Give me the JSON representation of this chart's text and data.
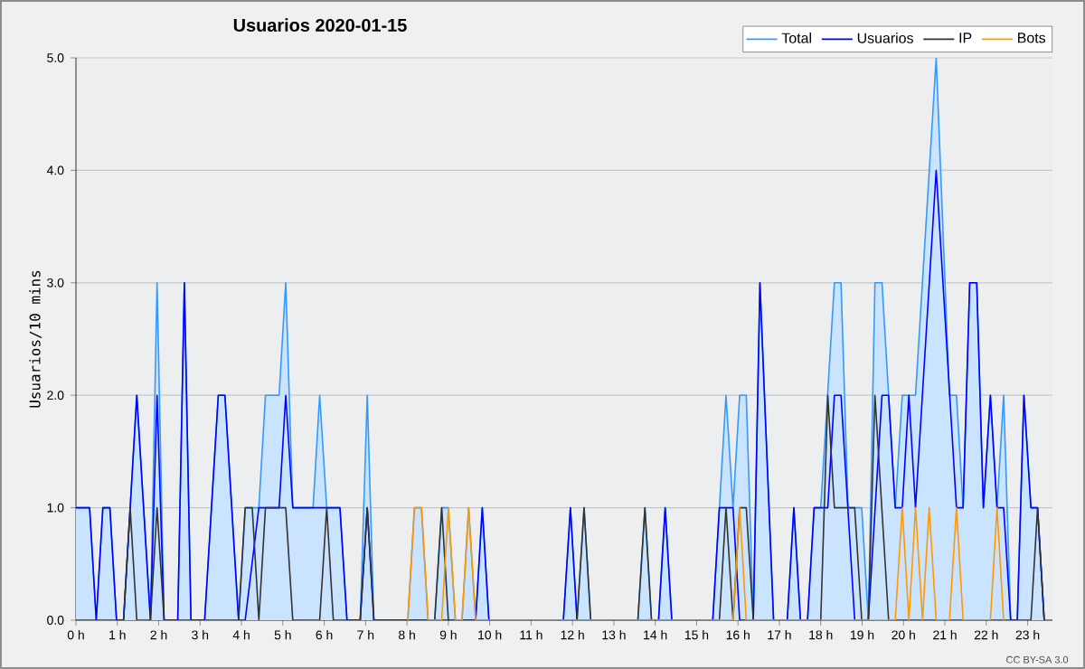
{
  "chart_data": {
    "type": "line",
    "title": "Usuarios  2020-01-15",
    "ylabel": "Usuarios/10 mins",
    "xlim": [
      0,
      23.6
    ],
    "ylim": [
      0,
      5
    ],
    "xticks": [
      {
        "value": 0,
        "label": "0 h"
      },
      {
        "value": 1,
        "label": "1 h"
      },
      {
        "value": 2,
        "label": "2 h"
      },
      {
        "value": 3,
        "label": "3 h"
      },
      {
        "value": 4,
        "label": "4 h"
      },
      {
        "value": 5,
        "label": "5 h"
      },
      {
        "value": 6,
        "label": "6 h"
      },
      {
        "value": 7,
        "label": "7 h"
      },
      {
        "value": 8,
        "label": "8 h"
      },
      {
        "value": 9,
        "label": "9 h"
      },
      {
        "value": 10,
        "label": "10 h"
      },
      {
        "value": 11,
        "label": "11 h"
      },
      {
        "value": 12,
        "label": "12 h"
      },
      {
        "value": 13,
        "label": "13 h"
      },
      {
        "value": 14,
        "label": "14 h"
      },
      {
        "value": 15,
        "label": "15 h"
      },
      {
        "value": 16,
        "label": "16 h"
      },
      {
        "value": 17,
        "label": "17 h"
      },
      {
        "value": 18,
        "label": "18 h"
      },
      {
        "value": 19,
        "label": "19 h"
      },
      {
        "value": 20,
        "label": "20 h"
      },
      {
        "value": 21,
        "label": "21 h"
      },
      {
        "value": 22,
        "label": "22 h"
      },
      {
        "value": 23,
        "label": "23 h"
      }
    ],
    "yticks": [
      {
        "value": 0,
        "label": "0.0"
      },
      {
        "value": 1,
        "label": "1.0"
      },
      {
        "value": 2,
        "label": "2.0"
      },
      {
        "value": 3,
        "label": "3.0"
      },
      {
        "value": 4,
        "label": "4.0"
      },
      {
        "value": 5,
        "label": "5.0"
      }
    ],
    "grid": "y",
    "legend": "top right",
    "annotations": [
      "CC BY-SA 3.0"
    ],
    "series": [
      {
        "name": "Total",
        "type": "area",
        "color": "#3399ff",
        "x": [
          0,
          0.33,
          0.49,
          0.65,
          0.82,
          0.98,
          1.15,
          1.47,
          1.8,
          1.96,
          2.13,
          2.46,
          2.62,
          2.78,
          3.11,
          3.44,
          3.6,
          3.93,
          4.09,
          4.42,
          4.58,
          4.91,
          5.07,
          5.24,
          5.73,
          5.89,
          6.06,
          6.38,
          6.55,
          6.87,
          7.04,
          7.2,
          8.02,
          8.18,
          8.35,
          8.51,
          8.67,
          8.84,
          9.0,
          9.17,
          9.33,
          9.49,
          9.66,
          9.82,
          9.98,
          11.78,
          11.95,
          12.11,
          12.28,
          12.44,
          13.58,
          13.75,
          13.91,
          14.08,
          14.24,
          14.4,
          15.39,
          15.55,
          15.71,
          15.88,
          16.04,
          16.2,
          16.37,
          16.53,
          16.86,
          17.19,
          17.35,
          17.51,
          17.68,
          17.84,
          18.0,
          18.33,
          18.49,
          18.66,
          18.99,
          19.15,
          19.31,
          19.48,
          19.8,
          19.97,
          20.29,
          20.79,
          21.11,
          21.28,
          21.44,
          21.6,
          21.77,
          21.93,
          22.1,
          22.26,
          22.42,
          22.59,
          22.75,
          22.91,
          23.08,
          23.24,
          23.4
        ],
        "values": [
          1,
          1,
          0,
          1,
          1,
          0,
          0,
          2,
          0,
          3,
          0,
          0,
          3,
          0,
          0,
          2,
          2,
          0,
          1,
          1,
          2,
          2,
          3,
          1,
          1,
          2,
          1,
          1,
          0,
          0,
          2,
          0,
          0,
          1,
          1,
          0,
          0,
          1,
          1,
          0,
          0,
          1,
          0,
          1,
          0,
          0,
          1,
          0,
          1,
          0,
          0,
          1,
          0,
          0,
          1,
          0,
          0,
          1,
          2,
          1,
          2,
          2,
          0,
          3,
          0,
          0,
          1,
          0,
          0,
          1,
          1,
          3,
          3,
          1,
          1,
          0,
          3,
          3,
          1,
          2,
          2,
          5,
          2,
          2,
          1,
          3,
          3,
          1,
          2,
          1,
          2,
          0,
          0,
          2,
          1,
          1,
          0
        ]
      },
      {
        "name": "Usuarios",
        "color": "#0000ff",
        "x": [
          0,
          0.33,
          0.49,
          0.65,
          0.82,
          0.98,
          1.15,
          1.47,
          1.8,
          1.96,
          2.13,
          2.46,
          2.62,
          2.78,
          3.11,
          3.44,
          3.6,
          3.93,
          4.09,
          4.42,
          4.91,
          5.07,
          5.24,
          6.38,
          6.55,
          6.87,
          7.04,
          7.2,
          9.66,
          9.82,
          9.98,
          11.78,
          11.95,
          12.11,
          14.08,
          14.24,
          14.4,
          15.39,
          15.55,
          15.88,
          16.04,
          16.37,
          16.53,
          16.86,
          17.19,
          17.35,
          17.51,
          17.68,
          17.84,
          18.17,
          18.33,
          18.49,
          18.82,
          19.15,
          19.48,
          19.64,
          19.8,
          19.97,
          20.13,
          20.29,
          20.79,
          21.28,
          21.44,
          21.6,
          21.77,
          21.93,
          22.1,
          22.26,
          22.42,
          22.59,
          22.75,
          22.91,
          23.08,
          23.24,
          23.4
        ],
        "values": [
          1,
          1,
          0,
          1,
          1,
          0,
          0,
          2,
          0,
          2,
          0,
          0,
          3,
          0,
          0,
          2,
          2,
          0,
          0,
          1,
          1,
          2,
          1,
          1,
          0,
          0,
          1,
          0,
          0,
          1,
          0,
          0,
          1,
          0,
          0,
          1,
          0,
          0,
          1,
          1,
          0,
          0,
          3,
          0,
          0,
          1,
          0,
          0,
          1,
          1,
          2,
          2,
          0,
          0,
          2,
          2,
          1,
          1,
          2,
          1,
          4,
          1,
          1,
          3,
          3,
          1,
          2,
          1,
          1,
          0,
          0,
          2,
          1,
          1,
          0
        ]
      },
      {
        "name": "IP",
        "color": "#333333",
        "x": [
          0,
          1.15,
          1.31,
          1.47,
          1.8,
          1.96,
          2.13,
          3.93,
          4.09,
          4.26,
          4.42,
          4.58,
          5.07,
          5.24,
          5.89,
          6.06,
          6.22,
          6.87,
          7.04,
          7.2,
          8.67,
          8.84,
          9.0,
          12.11,
          12.28,
          12.44,
          13.58,
          13.75,
          13.91,
          15.55,
          15.71,
          15.88,
          16.04,
          16.2,
          16.37,
          18.0,
          18.17,
          18.33,
          18.82,
          18.99,
          19.15,
          19.31,
          19.64,
          23.08,
          23.24,
          23.4
        ],
        "values": [
          0,
          0,
          1,
          0,
          0,
          1,
          0,
          0,
          1,
          1,
          0,
          1,
          1,
          0,
          0,
          1,
          0,
          0,
          1,
          0,
          0,
          1,
          0,
          0,
          1,
          0,
          0,
          1,
          0,
          0,
          1,
          0,
          1,
          1,
          0,
          0,
          2,
          1,
          1,
          0,
          0,
          2,
          0,
          0,
          1,
          0
        ]
      },
      {
        "name": "Bots",
        "color": "#ff9900",
        "x": [
          8.02,
          8.18,
          8.35,
          8.51,
          8.84,
          9.0,
          9.17,
          9.33,
          9.49,
          9.66,
          15.88,
          16.04,
          16.2,
          19.8,
          19.97,
          20.13,
          20.29,
          20.46,
          20.62,
          20.79,
          21.11,
          21.28,
          21.44,
          22.1,
          22.26,
          22.42
        ],
        "values": [
          0,
          1,
          1,
          0,
          0,
          1,
          0,
          0,
          1,
          0,
          0,
          1,
          0,
          0,
          1,
          0,
          1,
          0,
          1,
          0,
          0,
          1,
          0,
          0,
          1,
          0
        ]
      }
    ]
  }
}
